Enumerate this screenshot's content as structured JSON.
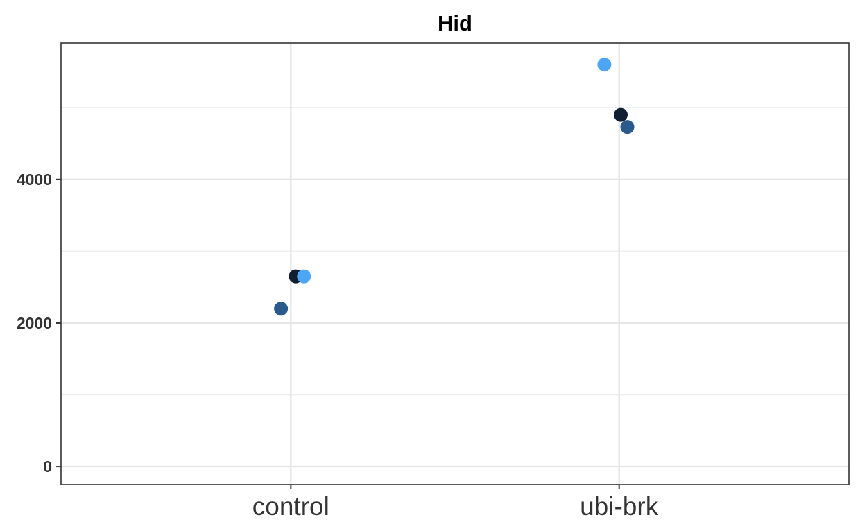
{
  "chart_data": {
    "type": "scatter",
    "title": "Hid",
    "xlabel": "",
    "ylabel": "",
    "categories": [
      "control",
      "ubi-brk"
    ],
    "ylim": [
      -250,
      5900
    ],
    "y_ticks": [
      0,
      2000,
      4000
    ],
    "y_tick_labels": [
      "0",
      "2000",
      "4000"
    ],
    "grid": true,
    "legend": "none",
    "points": [
      {
        "category": "control",
        "jitter": 0.015,
        "y": 2650,
        "color": "#0f1e33"
      },
      {
        "category": "control",
        "jitter": 0.04,
        "y": 2650,
        "color": "#4da6f5"
      },
      {
        "category": "control",
        "jitter": -0.03,
        "y": 2200,
        "color": "#2a5a8c"
      },
      {
        "category": "ubi-brk",
        "jitter": -0.045,
        "y": 5600,
        "color": "#4da6f5"
      },
      {
        "category": "ubi-brk",
        "jitter": 0.005,
        "y": 4900,
        "color": "#0f1e33"
      },
      {
        "category": "ubi-brk",
        "jitter": 0.025,
        "y": 4730,
        "color": "#2a5a8c"
      }
    ]
  }
}
